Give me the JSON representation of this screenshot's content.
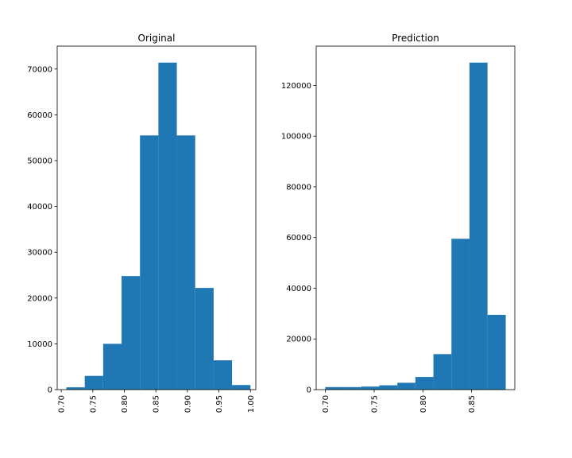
{
  "chart_data": [
    {
      "type": "bar",
      "title": "Original",
      "xlabel": "",
      "ylabel": "",
      "xlim": [
        0.6935,
        1.0085
      ],
      "ylim": [
        0,
        75000
      ],
      "xticks": [
        0.7,
        0.75,
        0.8,
        0.85,
        0.9,
        0.95,
        1.0
      ],
      "xtick_labels": [
        "0.70",
        "0.75",
        "0.80",
        "0.85",
        "0.90",
        "0.95",
        "1.00"
      ],
      "yticks": [
        0,
        10000,
        20000,
        30000,
        40000,
        50000,
        60000,
        70000
      ],
      "ytick_labels": [
        "0",
        "10000",
        "20000",
        "30000",
        "40000",
        "50000",
        "60000",
        "70000"
      ],
      "bin_edges": [
        0.708,
        0.7372,
        0.7664,
        0.7956,
        0.8248,
        0.854,
        0.8832,
        0.9124,
        0.9416,
        0.9708,
        1.0
      ],
      "values": [
        500,
        3000,
        10000,
        24800,
        55500,
        71400,
        55500,
        22200,
        6400,
        1000
      ],
      "color": "#1f77b4",
      "grid": false,
      "legend": "none"
    },
    {
      "type": "bar",
      "title": "Prediction",
      "xlabel": "",
      "ylabel": "",
      "xlim": [
        0.6905,
        0.8943
      ],
      "ylim": [
        0,
        135500
      ],
      "xticks": [
        0.7,
        0.75,
        0.8,
        0.85
      ],
      "xtick_labels": [
        "0.70",
        "0.75",
        "0.80",
        "0.85"
      ],
      "yticks": [
        0,
        20000,
        40000,
        60000,
        80000,
        100000,
        120000
      ],
      "ytick_labels": [
        "0",
        "20000",
        "40000",
        "60000",
        "80000",
        "100000",
        "120000"
      ],
      "bin_edges": [
        0.6998,
        0.7183,
        0.7368,
        0.7553,
        0.7738,
        0.7923,
        0.8108,
        0.8293,
        0.8478,
        0.8663,
        0.885
      ],
      "values": [
        1000,
        1000,
        1200,
        1700,
        2700,
        5000,
        14000,
        59500,
        129000,
        29500
      ],
      "color": "#1f77b4",
      "grid": false,
      "legend": "none"
    }
  ]
}
